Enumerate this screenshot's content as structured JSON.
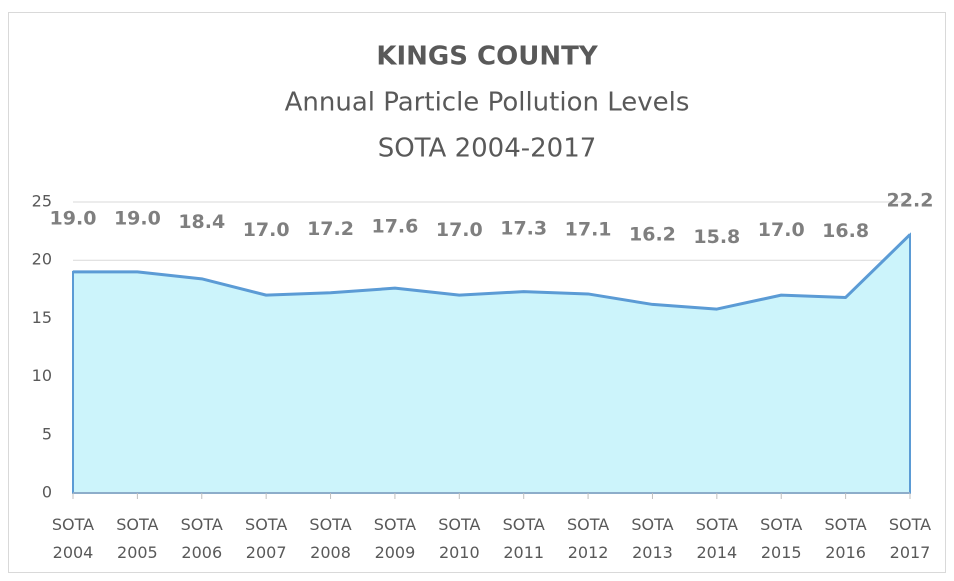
{
  "chart_data": {
    "type": "area",
    "title": "KINGS COUNTY",
    "subtitle": [
      "Annual Particle Pollution Levels",
      "SOTA 2004-2017"
    ],
    "categories": [
      "SOTA 2004",
      "SOTA 2005",
      "SOTA 2006",
      "SOTA 2007",
      "SOTA 2008",
      "SOTA 2009",
      "SOTA 2010",
      "SOTA 2011",
      "SOTA 2012",
      "SOTA 2013",
      "SOTA 2014",
      "SOTA 2015",
      "SOTA 2016",
      "SOTA 2017"
    ],
    "values": [
      19.0,
      19.0,
      18.4,
      17.0,
      17.2,
      17.6,
      17.0,
      17.3,
      17.1,
      16.2,
      15.8,
      17.0,
      16.8,
      22.2
    ],
    "value_labels": [
      "19.0",
      "19.0",
      "18.4",
      "17.0",
      "17.2",
      "17.6",
      "17.0",
      "17.3",
      "17.1",
      "16.2",
      "15.8",
      "17.0",
      "16.8",
      "22.2"
    ],
    "color": "#5b9bd5",
    "fill": "#ccf4fb",
    "ylim": [
      0,
      25
    ],
    "yticks": [
      0,
      5,
      10,
      15,
      20,
      25
    ],
    "grid": true
  }
}
